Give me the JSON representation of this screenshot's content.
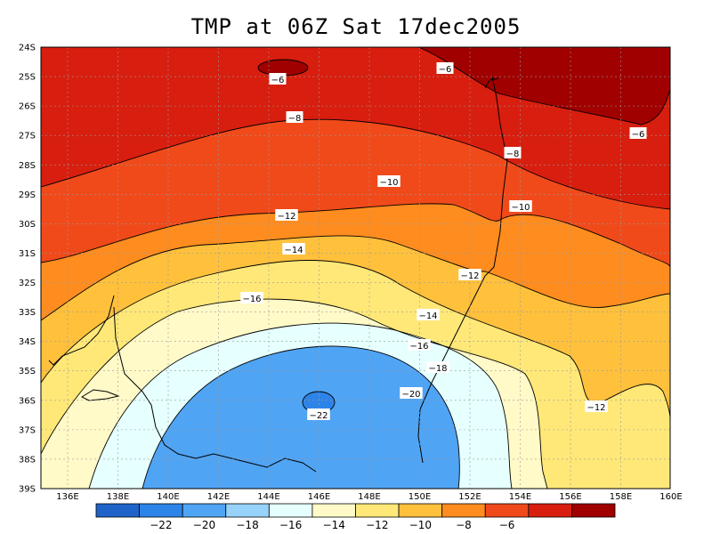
{
  "title": "TMP at 06Z Sat 17dec2005",
  "latitude_labels": [
    "24S",
    "25S",
    "26S",
    "27S",
    "28S",
    "29S",
    "30S",
    "31S",
    "32S",
    "33S",
    "34S",
    "35S",
    "36S",
    "37S",
    "38S",
    "39S"
  ],
  "longitude_labels": [
    "136E",
    "138E",
    "140E",
    "142E",
    "144E",
    "146E",
    "148E",
    "150E",
    "152E",
    "154E",
    "156E",
    "158E",
    "160E"
  ],
  "colorbar": {
    "colors": [
      "#1e64c8",
      "#2d84e8",
      "#50a4f4",
      "#96d2fa",
      "#e6ffff",
      "#fffac8",
      "#ffe878",
      "#ffc03c",
      "#ff8c1e",
      "#f04a1a",
      "#d81e0e",
      "#a00000"
    ],
    "labels": [
      "-22",
      "-20",
      "-18",
      "-16",
      "-14",
      "-12",
      "-10",
      "-8",
      "-6"
    ]
  },
  "contour_labels": [
    "-6",
    "-6",
    "-6",
    "-8",
    "-8",
    "-10",
    "-10",
    "-12",
    "-12",
    "-12",
    "-14",
    "-14",
    "-16",
    "-16",
    "-18",
    "-20",
    "-22"
  ]
}
